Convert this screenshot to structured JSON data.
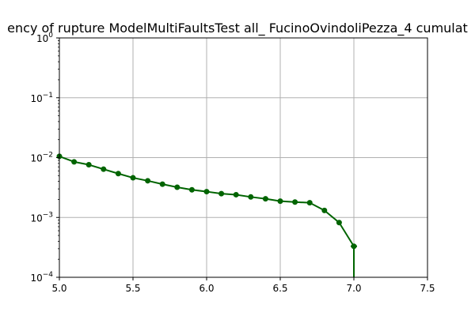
{
  "chart_data": {
    "type": "line",
    "title": "ency of rupture ModelMultiFaultsTest all_ FucinoOvindoliPezza_4 cumulat",
    "xlabel": "",
    "ylabel": "",
    "xlim": [
      5.0,
      7.5
    ],
    "ylim": [
      0.0001,
      1
    ],
    "yscale": "log",
    "grid": true,
    "x_ticks": [
      {
        "value": 5.0,
        "label": "5.0"
      },
      {
        "value": 5.5,
        "label": "5.5"
      },
      {
        "value": 6.0,
        "label": "6.0"
      },
      {
        "value": 6.5,
        "label": "6.5"
      },
      {
        "value": 7.0,
        "label": "7.0"
      },
      {
        "value": 7.5,
        "label": "7.5"
      }
    ],
    "y_ticks": [
      {
        "value": 0.0001,
        "base": "10",
        "exp": "−4"
      },
      {
        "value": 0.001,
        "base": "10",
        "exp": "−3"
      },
      {
        "value": 0.01,
        "base": "10",
        "exp": "−2"
      },
      {
        "value": 0.1,
        "base": "10",
        "exp": "−1"
      },
      {
        "value": 1,
        "base": "10",
        "exp": "0"
      }
    ],
    "series": [
      {
        "color": "#006400",
        "x": [
          5.0,
          5.1,
          5.2,
          5.3,
          5.4,
          5.5,
          5.6,
          5.7,
          5.8,
          5.9,
          6.0,
          6.1,
          6.2,
          6.3,
          6.4,
          6.5,
          6.6,
          6.7,
          6.8,
          6.9,
          7.0
        ],
        "y": [
          0.0105,
          0.0085,
          0.0076,
          0.0064,
          0.0054,
          0.0046,
          0.0041,
          0.0036,
          0.0032,
          0.0029,
          0.0027,
          0.0025,
          0.0024,
          0.0022,
          0.00205,
          0.00187,
          0.00181,
          0.00176,
          0.00131,
          0.00082,
          0.00033
        ]
      }
    ]
  }
}
